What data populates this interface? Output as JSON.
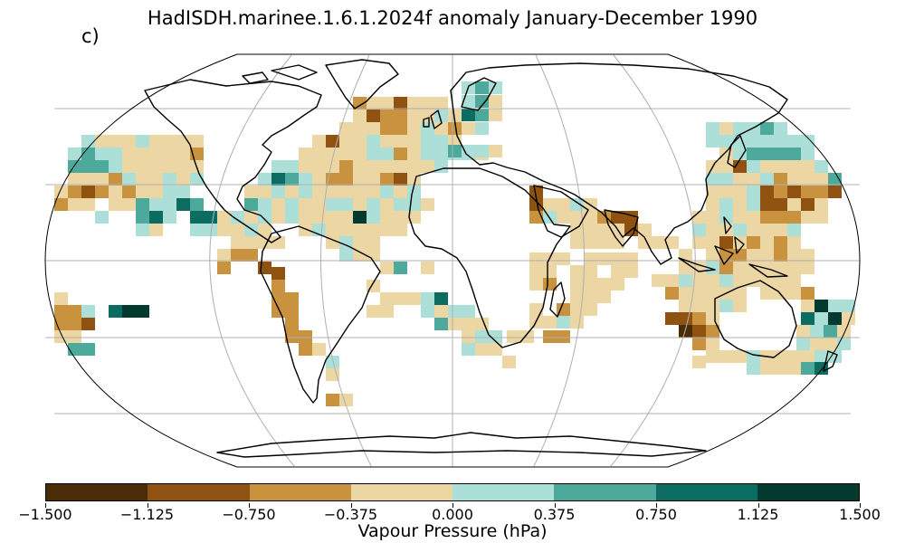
{
  "title": "HadISDH.marinee.1.6.1.2024f anomaly January-December 1990",
  "panel_label": "c)",
  "colorbar": {
    "label": "Vapour Pressure (hPa)",
    "ticks": [
      "−1.500",
      "−1.125",
      "−0.750",
      "−0.375",
      "0.000",
      "0.375",
      "0.750",
      "1.125",
      "1.500"
    ],
    "colors": [
      "#4a2d06",
      "#8f5211",
      "#c8923f",
      "#ebd6a4",
      "#abdfd8",
      "#4ea99d",
      "#0d6c62",
      "#033a30"
    ]
  },
  "map": {
    "projection": "Robinson",
    "gridlines": true,
    "graticule_color": "#b0b0b0"
  }
}
